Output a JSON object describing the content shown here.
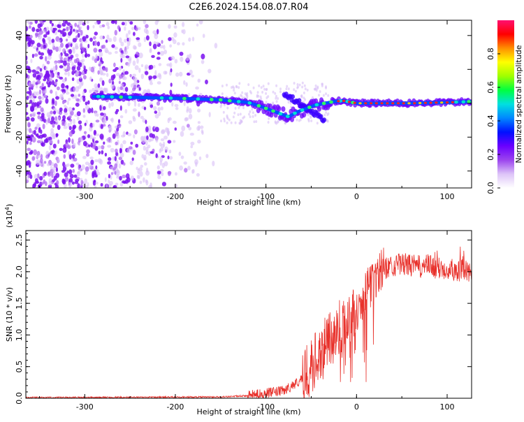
{
  "title": "C2E6.2024.154.08.07.R04",
  "chart_data": [
    {
      "type": "heatmap",
      "xlabel": "Height of straight line (km)",
      "ylabel": "Frequency (Hz)",
      "xlim": [
        -365,
        127
      ],
      "ylim": [
        -50,
        49
      ],
      "x_ticks": [
        -300,
        -200,
        -100,
        0,
        100
      ],
      "x_tick_labels": [
        "-300",
        "-200",
        "-100",
        "0",
        "100"
      ],
      "y_ticks": [
        -40,
        -20,
        0,
        20,
        40
      ],
      "y_tick_labels": [
        "-40",
        "-20",
        "0",
        "20",
        "40"
      ],
      "colorbar": {
        "label": "Normalized spectral amplitude",
        "range": [
          0,
          1
        ],
        "ticks": [
          0.0,
          0.2,
          0.4,
          0.6,
          0.8
        ],
        "tick_labels": [
          "0.0",
          "0.2",
          "0.4",
          "0.6",
          "0.8"
        ],
        "stops": [
          "#ffffff",
          "#ddc4f8",
          "#9b44ee",
          "#6a00ff",
          "#0010ff",
          "#0088ff",
          "#00e0e0",
          "#00ff40",
          "#a0ff00",
          "#ffff00",
          "#ff9000",
          "#ff0000",
          "#ff1070"
        ]
      },
      "ridge_line": {
        "x": [
          -290,
          -250,
          -200,
          -150,
          -120,
          -105,
          -95,
          -85,
          -75,
          -65,
          -55,
          -45,
          -35,
          -25,
          -15,
          -5,
          0,
          20,
          60,
          100,
          127
        ],
        "y": [
          4,
          3.5,
          3,
          2,
          0.5,
          -2,
          -4,
          -6,
          -8,
          -5,
          -3,
          -1,
          0,
          1,
          1.5,
          0.5,
          0,
          0,
          0,
          0.5,
          1
        ]
      }
    },
    {
      "type": "line",
      "xlabel": "Height of straight line (km)",
      "ylabel": "SNR (10 * v/v)",
      "y_multiplier_label": "(x10",
      "y_multiplier_exp": "4",
      "y_multiplier_close": ")",
      "xlim": [
        -365,
        127
      ],
      "ylim": [
        0,
        2.65
      ],
      "x_ticks": [
        -300,
        -200,
        -100,
        0,
        100
      ],
      "x_tick_labels": [
        "-300",
        "-200",
        "-100",
        "0",
        "100"
      ],
      "y_ticks": [
        0,
        0.5,
        1.0,
        1.5,
        2.0,
        2.5
      ],
      "y_tick_labels": [
        "0.0",
        "0.5",
        "1.0",
        "1.5",
        "2.0",
        "2.5"
      ],
      "series_color": "#e8302a",
      "envelope": {
        "x": [
          -365,
          -150,
          -120,
          -100,
          -80,
          -60,
          -50,
          -40,
          -30,
          -20,
          -10,
          0,
          10,
          20,
          30,
          40,
          50,
          60,
          70,
          80,
          90,
          100,
          110,
          127
        ],
        "y": [
          0.01,
          0.02,
          0.04,
          0.08,
          0.12,
          0.3,
          0.5,
          0.75,
          0.9,
          1.1,
          1.2,
          1.4,
          1.65,
          1.9,
          2.05,
          2.1,
          2.12,
          2.1,
          2.08,
          2.1,
          2.05,
          2.05,
          2.03,
          2.0
        ]
      }
    }
  ]
}
